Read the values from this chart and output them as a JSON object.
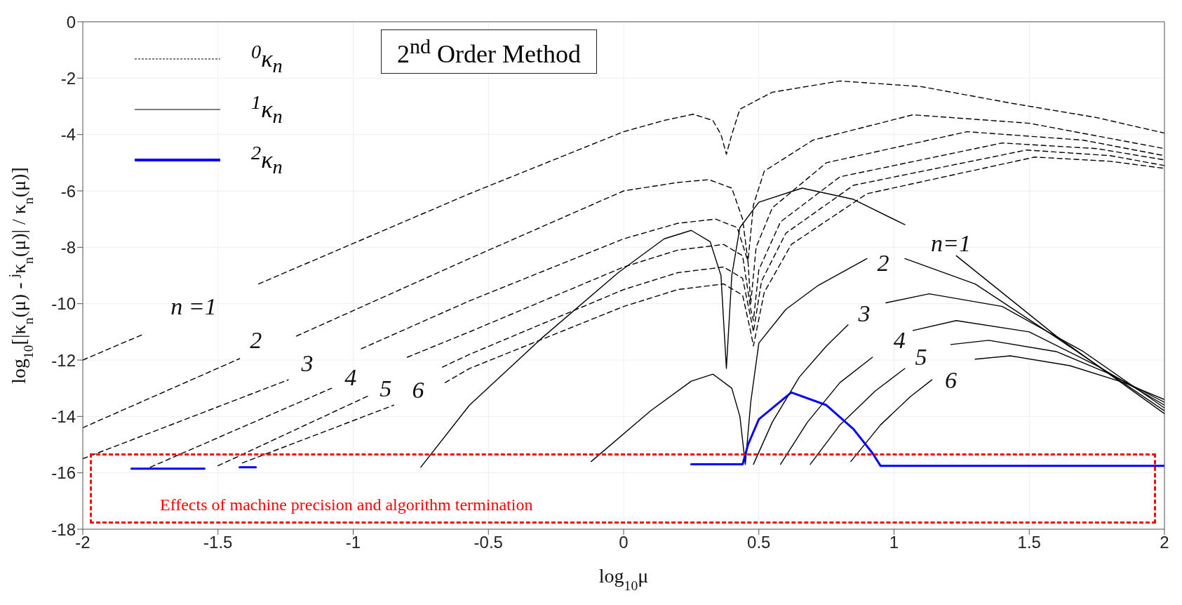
{
  "chart_data": {
    "type": "line",
    "xlabel": "log$_{10}$μ",
    "ylabel": "log$_{10}$[|κ$_{n}$(μ) - $^{j}$κ$_{n}$(μ)| / κ$_{n}$(μ)]",
    "xlim": [
      -2,
      2
    ],
    "xticks": [
      -2,
      -1.5,
      -1,
      -0.5,
      0,
      0.5,
      1,
      1.5,
      2
    ],
    "ylim": [
      -18,
      0
    ],
    "yticks": [
      -18,
      -16,
      -14,
      -12,
      -10,
      -8,
      -6,
      -4,
      -2,
      0
    ],
    "grid": true,
    "legend": "top left",
    "marker": "none",
    "series": [
      {
        "name": "$^{0}$κ$_{n}$",
        "color": "#000000",
        "line_style": "dashed",
        "x": [
          -2,
          -1.78,
          -1.6,
          -1.35,
          -0.57,
          0,
          0.15,
          0.257,
          0.33,
          0.36,
          0.38,
          0.4,
          0.43,
          0.55,
          0.8,
          1.1,
          1.44,
          1.75,
          2
        ],
        "values": [
          -12,
          -11.1,
          null,
          -9.3,
          -6.1,
          -3.9,
          -3.5,
          -3.28,
          -3.5,
          -4.0,
          -4.7,
          -4.0,
          -3.1,
          -2.5,
          -2.1,
          -2.3,
          -2.9,
          -3.4,
          -3.95
        ]
      },
      {
        "color": "#000000",
        "line_style": "dashed",
        "x": [
          -2,
          -1.42,
          -1.3,
          -1.21,
          -0.57,
          0,
          0.2,
          0.315,
          0.4,
          0.44,
          0.46,
          0.48,
          0.52,
          0.7,
          1.07,
          1.5,
          2
        ],
        "values": [
          -14.4,
          -11.95,
          null,
          -11.15,
          -8.4,
          -6.0,
          -5.7,
          -5.6,
          -5.9,
          -7.0,
          -8.5,
          -6.5,
          -5.3,
          -4.2,
          -3.3,
          -3.6,
          -4.5
        ]
      },
      {
        "color": "#000000",
        "line_style": "dashed",
        "x": [
          -2,
          -1.24,
          -1.1,
          -0.97,
          -0.57,
          0,
          0.2,
          0.34,
          0.42,
          0.46,
          0.47,
          0.49,
          0.55,
          0.75,
          1.27,
          1.7,
          2
        ],
        "values": [
          -15.5,
          -12.7,
          null,
          -11.6,
          -9.9,
          -7.7,
          -7.15,
          -7.0,
          -7.3,
          -8.5,
          -10,
          -8.0,
          -6.6,
          -5.0,
          -3.9,
          -4.2,
          -4.75
        ]
      },
      {
        "color": "#000000",
        "line_style": "dashed",
        "x": [
          -1.75,
          -1.08,
          -0.95,
          -0.8,
          -0.57,
          0,
          0.2,
          0.37,
          0.44,
          0.47,
          0.48,
          0.5,
          0.58,
          0.8,
          1.4,
          1.75,
          2
        ],
        "values": [
          -15.8,
          -13.0,
          null,
          -11.9,
          -11.0,
          -8.7,
          -8.1,
          -7.9,
          -8.3,
          -10.2,
          -10.6,
          -8.8,
          -7.1,
          -5.5,
          -4.3,
          -4.5,
          -4.9
        ]
      },
      {
        "color": "#000000",
        "line_style": "dashed",
        "x": [
          -1.5,
          -0.94,
          -0.8,
          -0.67,
          -0.57,
          0,
          0.2,
          0.37,
          0.44,
          0.47,
          0.48,
          0.51,
          0.6,
          0.85,
          1.49,
          1.8,
          2
        ],
        "values": [
          -15.75,
          -13.25,
          null,
          -12.25,
          -11.8,
          -9.5,
          -8.9,
          -8.7,
          -9.1,
          -10.5,
          -11,
          -9.2,
          -7.5,
          -5.8,
          -4.55,
          -4.75,
          -5.1
        ]
      },
      {
        "color": "#000000",
        "line_style": "dashed",
        "x": [
          -1.41,
          -0.85,
          -0.75,
          -0.66,
          -0.57,
          0,
          0.2,
          0.37,
          0.44,
          0.47,
          0.48,
          0.52,
          0.62,
          0.9,
          1.52,
          1.8,
          2
        ],
        "values": [
          -15.65,
          -13.6,
          null,
          -12.8,
          -12.3,
          -10.1,
          -9.5,
          -9.3,
          -9.7,
          -11,
          -11.5,
          -9.6,
          -7.9,
          -6.1,
          -4.8,
          -4.95,
          -5.2
        ]
      },
      {
        "name": "$^{1}$κ$_{n}$",
        "color": "#000000",
        "line_style": "solid",
        "x": [
          -0.75,
          -0.57,
          -0.3,
          -0.02,
          0.15,
          0.25,
          0.32,
          0.36,
          0.38,
          0.4,
          0.43,
          0.5,
          0.66,
          0.85,
          1.04,
          1.12,
          1.23,
          1.6,
          2
        ],
        "values": [
          -15.8,
          -13.6,
          -11.2,
          -8.9,
          -7.7,
          -7.4,
          -7.8,
          -9,
          -12.3,
          -9,
          -7.3,
          -6.4,
          -5.9,
          -6.3,
          -7.2,
          null,
          -8.3,
          -11.15,
          -13.9
        ]
      },
      {
        "color": "#000000",
        "line_style": "solid",
        "x": [
          -0.12,
          0.1,
          0.25,
          0.33,
          0.4,
          0.43,
          0.45,
          0.47,
          0.5,
          0.6,
          0.72,
          0.9
        ],
        "values": [
          -15.6,
          -13.8,
          -12.75,
          -12.5,
          -13.0,
          -14,
          -15.7,
          -13.5,
          -11.4,
          -10.2,
          -9.35,
          -8.4
        ]
      },
      {
        "color": "#000000",
        "line_style": "solid",
        "x": [
          1.04,
          1.3,
          1.6,
          2
        ],
        "values": [
          -8.4,
          -9.3,
          -11.2,
          -13.8
        ]
      },
      {
        "color": "#000000",
        "line_style": "solid",
        "x": [
          0.48,
          0.55,
          0.65,
          0.75,
          0.83
        ],
        "values": [
          -15.7,
          -14.2,
          -12.6,
          -11.5,
          -10.75
        ]
      },
      {
        "color": "#000000",
        "line_style": "solid",
        "x": [
          0.97,
          1.13,
          1.4,
          1.7,
          2
        ],
        "values": [
          -9.97,
          -9.65,
          -10.1,
          -11.7,
          -13.7
        ]
      },
      {
        "color": "#000000",
        "line_style": "solid",
        "x": [
          0.58,
          0.68,
          0.8,
          0.92,
          1.0,
          1.07,
          1.23,
          1.5,
          1.75,
          2
        ],
        "values": [
          -15.7,
          -14.2,
          -12.8,
          -11.9,
          null,
          -10.95,
          -10.6,
          -11.0,
          -12.2,
          -13.6
        ]
      },
      {
        "color": "#000000",
        "line_style": "solid",
        "x": [
          0.69,
          0.8,
          0.93,
          1.04,
          1.12,
          1.21,
          1.35,
          1.6,
          1.8,
          2
        ],
        "values": [
          -15.7,
          -14.3,
          -13.1,
          -12.3,
          null,
          -11.45,
          -11.3,
          -11.7,
          -12.5,
          -13.5
        ]
      },
      {
        "color": "#000000",
        "line_style": "solid",
        "x": [
          0.84,
          0.95,
          1.06,
          1.14,
          1.22,
          1.3,
          1.43,
          1.65,
          1.85,
          2
        ],
        "values": [
          -15.6,
          -14.3,
          -13.3,
          -12.7,
          null,
          -11.97,
          -11.85,
          -12.2,
          -12.8,
          -13.4
        ]
      },
      {
        "name": "$^{2}$κ$_{n}$",
        "color": "#0000ff",
        "line_style": "solid",
        "x": [
          -1.82,
          -1.55,
          -1.5,
          -1.42,
          -1.36,
          -1.3,
          0.25,
          0.44,
          0.46,
          0.5,
          0.62,
          0.75,
          0.85,
          0.92,
          0.95,
          1.5,
          2
        ],
        "values": [
          -15.85,
          -15.85,
          null,
          -15.8,
          -15.8,
          null,
          -15.7,
          -15.7,
          -15.0,
          -14.1,
          -13.15,
          -13.6,
          -14.45,
          -15.3,
          -15.75,
          -15.75,
          -15.75
        ]
      }
    ],
    "annotations": [
      "2$^{nd}$ Order Method",
      "Effects of machine precision and algorithm termination",
      "n =1",
      "2",
      "3",
      "4",
      "5",
      "6",
      "n=1",
      "2",
      "3",
      "4",
      "5",
      "6"
    ]
  }
}
